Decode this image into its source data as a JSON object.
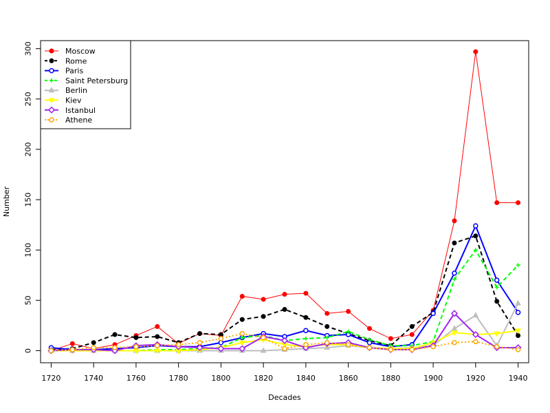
{
  "chart_data": {
    "type": "line",
    "title": "",
    "xlabel": "Decades",
    "ylabel": "Number",
    "xlim": [
      1715,
      1945
    ],
    "ylim": [
      -12,
      308
    ],
    "x_ticks": [
      1720,
      1740,
      1760,
      1780,
      1800,
      1820,
      1840,
      1860,
      1880,
      1900,
      1920,
      1940
    ],
    "y_ticks": [
      0,
      50,
      100,
      150,
      200,
      250,
      300
    ],
    "x_tick_labels": [
      "1720",
      "1740",
      "1760",
      "1780",
      "1800",
      "1820",
      "1840",
      "1860",
      "1880",
      "1900",
      "1920",
      "1940"
    ],
    "y_tick_labels": [
      "0",
      "50",
      "100",
      "150",
      "200",
      "250",
      "300"
    ],
    "legend_position": "top-left",
    "grid": false,
    "x": [
      1720,
      1730,
      1740,
      1750,
      1760,
      1770,
      1780,
      1790,
      1800,
      1810,
      1820,
      1830,
      1840,
      1850,
      1860,
      1870,
      1880,
      1890,
      1900,
      1910,
      1920,
      1930,
      1940
    ],
    "series": [
      {
        "name": "Moscow",
        "color": "#ff0000",
        "marker": "filled-circle",
        "dash": "solid",
        "width": 1,
        "values": [
          0,
          7,
          2,
          6,
          15,
          24,
          7,
          17,
          15,
          54,
          51,
          56,
          57,
          37,
          39,
          22,
          12,
          16,
          40,
          129,
          297,
          147,
          147
        ]
      },
      {
        "name": "Rome",
        "color": "#000000",
        "marker": "filled-circle",
        "dash": "dashed",
        "width": 2,
        "values": [
          1,
          2,
          8,
          16,
          13,
          14,
          8,
          17,
          16,
          31,
          34,
          41,
          33,
          24,
          17,
          10,
          5,
          24,
          38,
          107,
          114,
          49,
          15
        ]
      },
      {
        "name": "Paris",
        "color": "#0000ff",
        "marker": "open-circle",
        "dash": "solid",
        "width": 2,
        "values": [
          3,
          1,
          1,
          2,
          3,
          5,
          4,
          4,
          8,
          13,
          17,
          14,
          20,
          15,
          16,
          8,
          4,
          6,
          37,
          77,
          124,
          70,
          38
        ]
      },
      {
        "name": "Saint Petersburg",
        "color": "#00ff00",
        "marker": "plus",
        "dash": "dashed",
        "width": 2,
        "values": [
          0,
          0,
          0,
          0,
          0,
          1,
          1,
          2,
          3,
          13,
          15,
          10,
          12,
          13,
          19,
          11,
          5,
          5,
          9,
          71,
          100,
          63,
          85
        ]
      },
      {
        "name": "Berlin",
        "color": "#bebebe",
        "marker": "triangle",
        "dash": "solid",
        "width": 2,
        "values": [
          0,
          0,
          0,
          0,
          0,
          0,
          0,
          0,
          0,
          0,
          0,
          1,
          2,
          3,
          5,
          3,
          2,
          3,
          5,
          22,
          35,
          5,
          47
        ]
      },
      {
        "name": "Kiev",
        "color": "#ffff00",
        "marker": "down-triangle",
        "dash": "solid",
        "width": 2,
        "values": [
          0,
          0,
          0,
          0,
          0,
          0,
          0,
          1,
          3,
          8,
          11,
          6,
          4,
          6,
          6,
          3,
          2,
          2,
          8,
          18,
          16,
          17,
          20
        ]
      },
      {
        "name": "Istanbul",
        "color": "#a020f0",
        "marker": "diamond",
        "dash": "solid",
        "width": 2,
        "values": [
          0,
          1,
          1,
          0,
          5,
          6,
          4,
          3,
          2,
          2,
          14,
          10,
          3,
          7,
          8,
          3,
          1,
          1,
          5,
          37,
          16,
          3,
          3
        ]
      },
      {
        "name": "Athene",
        "color": "#ffa500",
        "marker": "open-circle",
        "dash": "dotted",
        "width": 2,
        "values": [
          0,
          1,
          3,
          3,
          4,
          5,
          6,
          8,
          12,
          17,
          13,
          2,
          6,
          8,
          6,
          3,
          1,
          1,
          4,
          8,
          9,
          4,
          1
        ]
      }
    ]
  }
}
